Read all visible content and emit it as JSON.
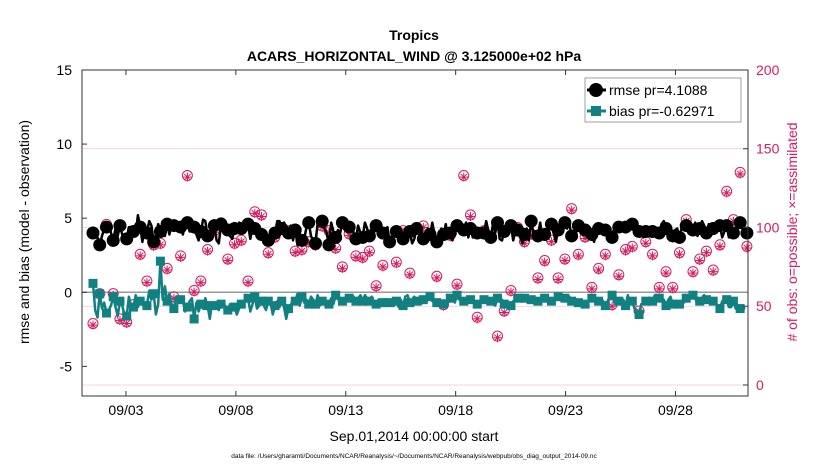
{
  "chart_data": {
    "type": "line",
    "title": "Tropics",
    "subtitle": "ACARS_HORIZONTAL_WIND @ 3.125000e+02 hPa",
    "xlabel": "Sep.01,2014 00:00:00 start",
    "ylabel": "rmse and bias (model - observation)",
    "ylabel_right": "# of obs: o=possible; ×=assimilated",
    "footnote": "data file: /Users/gharamti/Documents/NCAR/Reanalysis/~/Documents/NCAR/Reanalysis/webpub/obs_diag_output_2014-09.nc",
    "xlim": [
      0.5,
      30.8
    ],
    "ylim": [
      -7,
      15
    ],
    "ylim_right": [
      -7,
      200
    ],
    "x_ticks": [
      2.5,
      7.5,
      12.5,
      17.5,
      22.5,
      27.5
    ],
    "x_tick_labels": [
      "09/03",
      "09/08",
      "09/13",
      "09/18",
      "09/23",
      "09/28"
    ],
    "y_ticks": [
      -5,
      0,
      5,
      10,
      15
    ],
    "y_tick_labels": [
      "-5",
      "0",
      "5",
      "10",
      "15"
    ],
    "y_ticks_right": [
      0,
      50,
      100,
      150,
      200
    ],
    "y_tick_labels_right": [
      "0",
      "50",
      "100",
      "150",
      "200"
    ],
    "legend": {
      "position": "top-right",
      "entries": [
        "rmse pr=4.1088",
        "bias pr=-0.62971"
      ]
    },
    "colors": {
      "rmse": "#000000",
      "bias": "#118080",
      "obs": "#d81b60",
      "zero_line": "#999999",
      "grid": "#f2c7d4"
    },
    "series": [
      {
        "name": "rmse",
        "values": [
          4.0,
          3.9,
          3.7,
          3.2,
          3.8,
          4.3,
          4.4,
          4.7,
          4.0,
          3.5,
          4.3,
          3.8,
          4.5,
          3.9,
          3.8,
          3.6,
          4.4,
          3.9,
          4.1,
          3.9,
          5.2,
          4.4,
          3.4,
          4.5,
          4.0,
          4.8,
          4.5,
          3.4,
          3.9,
          4.6,
          4.1,
          4.1,
          3.8,
          4.6,
          3.9,
          4.6,
          4.5,
          4.7,
          4.5,
          4.4,
          3.9,
          4.6,
          4.7,
          4.1,
          4.3,
          4.4,
          3.9,
          3.5,
          4.1,
          4.9,
          4.8,
          3.8,
          3.5,
          3.6,
          4.5,
          3.5,
          3.3,
          4.6,
          4.5,
          4.5,
          4.2,
          3.8,
          3.6,
          4.3,
          4.2,
          4.7,
          4.3,
          4.0,
          4.9,
          4.6,
          3.6,
          4.3,
          4.3,
          4.2,
          3.9,
          3.9,
          4.0,
          4.0,
          3.5,
          3.8,
          3.7,
          4.0,
          4.8,
          4.8,
          4.3,
          4.7,
          4.3,
          4.0,
          4.5,
          3.5,
          4.2,
          3.2,
          4.0,
          3.5,
          3.6,
          4.4,
          4.7,
          3.8,
          3.5,
          3.3,
          4.7,
          4.8,
          4.8,
          4.3,
          4.0,
          3.2,
          4.7,
          4.1,
          3.7,
          4.2,
          4.0,
          4.7,
          4.6,
          4.7,
          4.4,
          4.6,
          4.0,
          3.6,
          4.5,
          4.0,
          3.7,
          4.7,
          4.3,
          3.8,
          4.3,
          4.0,
          4.5,
          4.6,
          4.1,
          4.0,
          3.8,
          4.4,
          3.4,
          3.6,
          3.9,
          4.1,
          3.7,
          4.0,
          3.6,
          3.9,
          4.3,
          4.1,
          3.3,
          3.6,
          4.3,
          4.2,
          4.3,
          3.6,
          4.0,
          4.3,
          3.9,
          4.7,
          3.9,
          3.4,
          3.7,
          4.3,
          3.9,
          4.6,
          3.7,
          4.0,
          3.5,
          4.8,
          4.5,
          4.3,
          4.4,
          4.2,
          4.7,
          3.7,
          4.3,
          3.7,
          4.2,
          4.0,
          3.8,
          4.3,
          4.0,
          4.8,
          4.1,
          3.7,
          4.6,
          4.0,
          4.7,
          3.6,
          3.5,
          4.1,
          4.3,
          4.8,
          4.5,
          3.5,
          4.1,
          4.2,
          3.9,
          3.3,
          3.9,
          4.3,
          3.5,
          4.8,
          4.0,
          3.7,
          3.8,
          4.7,
          3.7,
          3.9,
          4.3,
          4.4,
          4.6,
          4.0,
          3.4,
          4.2,
          3.9,
          4.4,
          4.7,
          4.3,
          4.6,
          3.8,
          3.9,
          4.0,
          4.5,
          4.2,
          4.1,
          4.2,
          3.9,
          4.0,
          3.9,
          3.4,
          4.1,
          4.3,
          4.6,
          4.5,
          4.2,
          4.3,
          3.8,
          3.7,
          4.4,
          4.7,
          4.4,
          4.6,
          4.3,
          4.4,
          4.4,
          4.7,
          4.6,
          4.0,
          4.2,
          4.1,
          4.2,
          3.7,
          4.1,
          4.4,
          4.2,
          4.1,
          4.4,
          4.2,
          4.0,
          4.6,
          4.8,
          4.3,
          4.3,
          3.9,
          3.8,
          4.2,
          4.3,
          3.7,
          4.4,
          4.6,
          4.5,
          4.0,
          4.3,
          4.2,
          4.7,
          3.8,
          4.3,
          4.8,
          4.5,
          4.0,
          4.6,
          3.9,
          4.3,
          4.0,
          4.2,
          4.5,
          3.7,
          4.1,
          4.5,
          3.7,
          4.0,
          4.0,
          3.7,
          4.4,
          4.7,
          4.3,
          4.0,
          4.0
        ]
      },
      {
        "name": "bias",
        "values": [
          0.6,
          -1.2,
          -1.7,
          -0.1,
          -1.1,
          -0.7,
          -1.4,
          -1.2,
          -0.9,
          -0.3,
          -1.0,
          -1.6,
          -0.6,
          -0.9,
          -1.5,
          -1.6,
          -0.3,
          -1.0,
          -1.0,
          -0.2,
          -1.0,
          -0.6,
          -0.8,
          -1.0,
          -0.9,
          0.1,
          -0.5,
          -0.1,
          -1.5,
          -0.8,
          2.1,
          -0.5,
          0.4,
          -0.6,
          -0.1,
          -0.8,
          -1.1,
          -0.3,
          -0.7,
          -0.5,
          -0.6,
          -1.3,
          -1.0,
          -0.6,
          -0.4,
          -1.8,
          -0.7,
          -1.3,
          -0.8,
          -1.1,
          -0.4,
          -0.9,
          -1.8,
          -0.7,
          -0.9,
          -0.7,
          -1.2,
          -0.8,
          -0.7,
          -1.0,
          -1.2,
          -0.8,
          -0.8,
          -1.0,
          -1.5,
          -1.1,
          -0.8,
          -0.7,
          -0.6,
          -0.4,
          -1.3,
          -0.8,
          -0.3,
          -1.1,
          -0.9,
          -0.6,
          -0.9,
          -1.2,
          -0.6,
          -0.7,
          -1.5,
          -0.9,
          -0.6,
          -1.0,
          -0.6,
          -1.0,
          -1.8,
          -1.1,
          -0.9,
          -0.5,
          -0.6,
          -0.1,
          -0.9,
          -0.3,
          -0.7,
          -0.5,
          -0.8,
          -0.3,
          -0.5,
          -0.8,
          -0.2,
          -0.9,
          -0.6,
          -0.5,
          -0.7,
          -0.8,
          -0.4,
          -0.8,
          -0.2,
          -0.4,
          -0.8,
          -0.6,
          -0.5,
          -0.6,
          -0.4,
          -0.6,
          -0.3,
          -0.6,
          -0.4,
          -0.2,
          -0.6,
          -0.2,
          -0.4,
          -0.6,
          -0.3,
          -0.7,
          -0.8,
          -0.5,
          -0.9,
          -0.7,
          -0.5,
          -0.6,
          -0.7,
          -0.6,
          -0.9,
          -0.6,
          -1.0,
          -0.5,
          -0.9,
          -0.3,
          -0.2,
          -0.7,
          -0.6,
          -0.3,
          -0.6,
          -0.7,
          -0.8,
          -0.5,
          -0.4,
          -0.3,
          -0.3,
          -0.6,
          -0.6,
          -0.7,
          -0.6,
          -0.7,
          -0.8,
          -1.0,
          -0.7,
          -0.4,
          -0.3,
          -0.7,
          -0.2,
          -0.5,
          -0.6,
          -0.6,
          -0.4,
          -0.5,
          -0.5,
          -0.6,
          -0.8,
          -0.8,
          -0.8,
          -0.7,
          -0.5,
          -0.7,
          -0.5,
          -0.6,
          -0.8,
          -0.9,
          -0.4,
          -0.5,
          -0.5,
          -0.8,
          -0.6,
          -0.7,
          -0.9,
          -0.6,
          -0.5,
          -0.4,
          -0.6,
          -0.5,
          -0.4,
          -0.6,
          -0.7,
          -0.5,
          -0.3,
          -0.7,
          -0.6,
          -0.4,
          -0.3,
          -0.4,
          -0.3,
          -0.8,
          -0.6,
          -0.5,
          -0.4,
          -0.3,
          -0.2,
          -0.2,
          -0.4,
          -0.4,
          -0.3,
          -0.6,
          -0.5,
          -0.5,
          -0.7,
          -0.8,
          -0.6,
          -0.8,
          -0.6,
          -0.6,
          -0.4,
          -0.4,
          -0.7,
          -0.6,
          -0.4,
          -0.6,
          -0.9,
          -0.6,
          -0.3,
          -0.2,
          -0.7,
          -0.5,
          -0.6,
          -0.7,
          -0.5,
          -0.9,
          -0.2,
          -0.7,
          -0.6,
          -1.1,
          -1.2,
          -1.5,
          -0.8,
          -0.8,
          -0.6,
          -0.6,
          -0.5,
          -0.6,
          -0.2,
          -0.5,
          -0.4,
          -0.6,
          -0.5,
          -0.9,
          -0.5,
          -0.3,
          -0.8,
          -0.6,
          -1.0,
          -0.8,
          -0.7,
          -0.7,
          -0.4,
          -0.6,
          -0.3,
          -0.2,
          -0.4,
          -0.8,
          -0.6,
          -0.4,
          -0.2,
          -0.5,
          -0.6,
          -0.7,
          -0.6,
          -0.6,
          -1.0,
          -1.1,
          -0.6,
          -0.7,
          -0.5,
          -1.0,
          -1.0,
          -0.6,
          -1.1,
          -1.0,
          -1.1,
          -1.3,
          -1.0
        ]
      }
    ],
    "obs_counts": {
      "possible": [
        39,
        26,
        57,
        58,
        76,
        106,
        102,
        65,
        82,
        58,
        77,
        95,
        42,
        65,
        73,
        40,
        85,
        72,
        51,
        84,
        81,
        83,
        78,
        83,
        66,
        95,
        84,
        89,
        83,
        94,
        90,
        90,
        121,
        74,
        103,
        65,
        56,
        72,
        95,
        82,
        82,
        98,
        133,
        110,
        88,
        60,
        103,
        95,
        66,
        55,
        80,
        86,
        105,
        97,
        98,
        91,
        107,
        103,
        110,
        80,
        80,
        99,
        91,
        90,
        63,
        95,
        92,
        108,
        56,
        66,
        72,
        39,
        110,
        93,
        112,
        108,
        112,
        94,
        84,
        65,
        71,
        94,
        95,
        117,
        100,
        51,
        91,
        98,
        97,
        73,
        85,
        98,
        97,
        86,
        89,
        52,
        91,
        95,
        68,
        89,
        140,
        126,
        101,
        121,
        50,
        98,
        54,
        64,
        87,
        71,
        53,
        75,
        116,
        116,
        96,
        75,
        43,
        82,
        99,
        117,
        81,
        50,
        106,
        85,
        92,
        79,
        63,
        43,
        69,
        76,
        103,
        59,
        91,
        111,
        77,
        78,
        90,
        63,
        98,
        69,
        83,
        71,
        102,
        112,
        100,
        102,
        127,
        101,
        85,
        117,
        96,
        93,
        82,
        69,
        98,
        42,
        51,
        101,
        93,
        95,
        102,
        109,
        64,
        69,
        54,
        133,
        105,
        118,
        108,
        98,
        111,
        43,
        106,
        128,
        98,
        100,
        101,
        94,
        116,
        112,
        31,
        50,
        24,
        47,
        114,
        118,
        60,
        136,
        99,
        100,
        69,
        125,
        91,
        100,
        70,
        96,
        92,
        96,
        68,
        80,
        80,
        79,
        43,
        62,
        92,
        103,
        87,
        68,
        101,
        80,
        80,
        93,
        78,
        112,
        65,
        92,
        83,
        103,
        79,
        94,
        87,
        53,
        62,
        101,
        108,
        74,
        103,
        88,
        83,
        58,
        118,
        51,
        80,
        80,
        70,
        75,
        58,
        86,
        78,
        96,
        88,
        89,
        100,
        47,
        35,
        88,
        91,
        42,
        94,
        83,
        103,
        54,
        62,
        103,
        119,
        72,
        114,
        90,
        62,
        101,
        93,
        84,
        115,
        91,
        105,
        81,
        96,
        72,
        72,
        89,
        80,
        70,
        99,
        85,
        124,
        150,
        73,
        88,
        104,
        89,
        101,
        84,
        123,
        86,
        59,
        105,
        58,
        55,
        135,
        91,
        102,
        88,
        81,
        101
      ],
      "assimilated": [
        38,
        25,
        56,
        57,
        75,
        105,
        101,
        64,
        81,
        57,
        76,
        94,
        41,
        64,
        72,
        39,
        84,
        71,
        50,
        83,
        80,
        82,
        77,
        82,
        65,
        94,
        83,
        88,
        82,
        93,
        89,
        89,
        120,
        73,
        102,
        64,
        55,
        71,
        94,
        81,
        81,
        97,
        132,
        109,
        87,
        59,
        102,
        94,
        65,
        54,
        79,
        85,
        104,
        96,
        97,
        90,
        106,
        102,
        109,
        79,
        79,
        98,
        90,
        89,
        62,
        94,
        91,
        107,
        55,
        65,
        71,
        38,
        109,
        92,
        111,
        107,
        111,
        93,
        83,
        64,
        70,
        93,
        94,
        116,
        99,
        50,
        90,
        97,
        96,
        72,
        84,
        97,
        96,
        85,
        88,
        51,
        90,
        94,
        67,
        88,
        139,
        125,
        100,
        120,
        49,
        97,
        53,
        63,
        86,
        70,
        52,
        74,
        115,
        115,
        95,
        74,
        42,
        81,
        98,
        116,
        80,
        49,
        105,
        84,
        91,
        78,
        62,
        42,
        68,
        75,
        102,
        58,
        90,
        110,
        76,
        77,
        89,
        62,
        97,
        68,
        82,
        70,
        101,
        111,
        99,
        101,
        126,
        100,
        84,
        116,
        95,
        92,
        81,
        68,
        97,
        41,
        50,
        100,
        92,
        94,
        101,
        108,
        63,
        68,
        53,
        132,
        104,
        117,
        107,
        97,
        110,
        42,
        105,
        127,
        97,
        99,
        100,
        93,
        115,
        111,
        30,
        49,
        23,
        46,
        113,
        117,
        59,
        135,
        98,
        99,
        68,
        124,
        90,
        99,
        69,
        95,
        91,
        95,
        67,
        79,
        79,
        78,
        42,
        61,
        91,
        102,
        86,
        67,
        100,
        79,
        79,
        92,
        77,
        111,
        64,
        91,
        82,
        102,
        78,
        93,
        86,
        52,
        61,
        100,
        107,
        73,
        102,
        87,
        82,
        57,
        117,
        50,
        79,
        79,
        69,
        74,
        57,
        85,
        77,
        95,
        87,
        88,
        99,
        46,
        34,
        87,
        90,
        41,
        93,
        82,
        102,
        53,
        61,
        102,
        118,
        71,
        113,
        89,
        61,
        100,
        92,
        83,
        114,
        90,
        104,
        80,
        95,
        71,
        71,
        88,
        79,
        69,
        98,
        84,
        123,
        149,
        72,
        87,
        103,
        88,
        100,
        83,
        122,
        85,
        58,
        104,
        57,
        54,
        134,
        90,
        101,
        87,
        80,
        100
      ]
    }
  }
}
